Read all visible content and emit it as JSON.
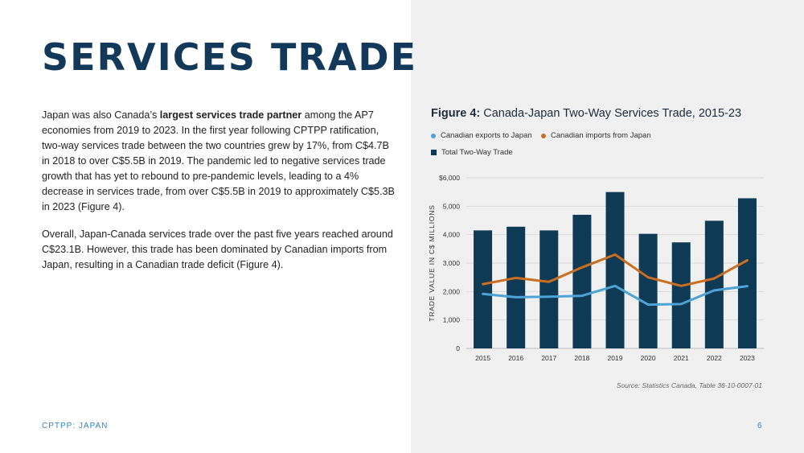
{
  "page": {
    "title": "SERVICES TRADE",
    "footer": "CPTPP: JAPAN",
    "page_number": "6"
  },
  "body": {
    "p1_before": "Japan was also Canada’s ",
    "p1_bold": "largest services trade partner",
    "p1_after": " among the AP7 economies from 2019 to 2023. In the first year following CPTPP ratification, two-way services trade between the two countries grew by 17%, from C$4.7B in 2018 to over C$5.5B in 2019. The pandemic led to negative services trade growth that has yet to rebound to pre-pandemic levels, leading to a 4% decrease in services trade, from over C$5.5B in 2019 to approximately C$5.3B in 2023 (Figure 4).",
    "p2": "Overall, Japan-Canada services trade over the past five years reached around C$23.1B. However, this trade has been dominated by Canadian imports from Japan, resulting in a Canadian trade deficit (Figure 4)."
  },
  "figure": {
    "label": "Figure 4:",
    "title": "Canada-Japan Two-Way Services Trade, 2015-23",
    "source": "Source: Statistics Canada, Table 36-10-0007-01"
  },
  "chart_data": {
    "type": "bar",
    "categories": [
      "2015",
      "2016",
      "2017",
      "2018",
      "2019",
      "2020",
      "2021",
      "2022",
      "2023"
    ],
    "ylabel": "TRADE VALUE IN C$ MILLIONS",
    "ylim": [
      0,
      6000
    ],
    "yticks": [
      0,
      1000,
      2000,
      3000,
      4000,
      5000,
      6000
    ],
    "ytick_labels": [
      "0",
      "1,000",
      "2,000",
      "3,000",
      "4,000",
      "5,000",
      "$6,000"
    ],
    "grid": true,
    "legend_position": "top",
    "series": [
      {
        "name": "Total Two-Way Trade",
        "kind": "bar",
        "color": "#0e3a55",
        "values": [
          4150,
          4280,
          4150,
          4700,
          5500,
          4030,
          3730,
          4490,
          5280
        ]
      },
      {
        "name": "Canadian exports to Japan",
        "kind": "line",
        "color": "#4da3d6",
        "values": [
          1920,
          1800,
          1820,
          1850,
          2200,
          1540,
          1560,
          2040,
          2190
        ]
      },
      {
        "name": "Canadian imports from Japan",
        "kind": "line",
        "color": "#cc6d1f",
        "values": [
          2260,
          2480,
          2340,
          2850,
          3300,
          2500,
          2200,
          2460,
          3100
        ]
      }
    ]
  }
}
